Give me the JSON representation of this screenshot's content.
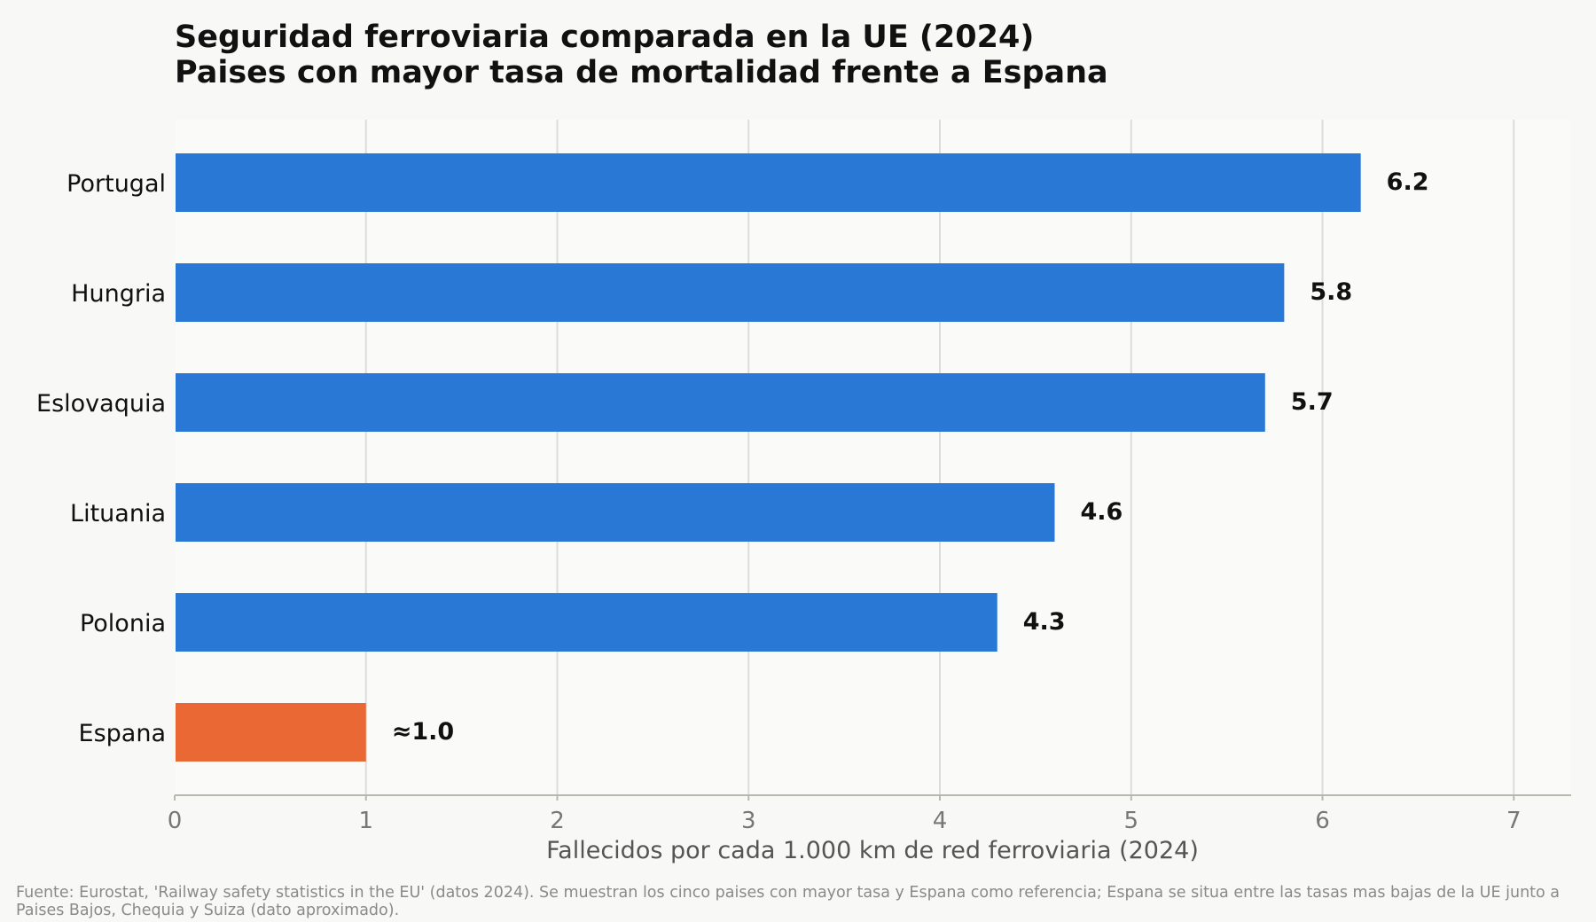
{
  "chart_data": {
    "type": "bar",
    "orientation": "horizontal",
    "title": "Seguridad ferroviaria comparada en la UE (2024)",
    "subtitle": "Paises con mayor tasa de mortalidad frente a Espana",
    "categories": [
      "Portugal",
      "Hungria",
      "Eslovaquia",
      "Lituania",
      "Polonia",
      "Espana"
    ],
    "values": [
      6.2,
      5.8,
      5.7,
      4.6,
      4.3,
      1.0
    ],
    "value_labels": [
      "6.2",
      "5.8",
      "5.7",
      "4.6",
      "4.3",
      "≈1.0"
    ],
    "bar_colors": [
      "#2a78d6",
      "#2a78d6",
      "#2a78d6",
      "#2a78d6",
      "#2a78d6",
      "#e96834"
    ],
    "xlabel": "Fallecidos por cada 1.000 km de red ferroviaria (2024)",
    "ylabel": "",
    "xlim": [
      0,
      7.3
    ],
    "xticks": [
      0,
      1,
      2,
      3,
      4,
      5,
      6,
      7
    ],
    "grid": "vertical",
    "legend": "none"
  },
  "footnote": "Fuente: Eurostat, 'Railway safety statistics in the EU' (datos 2024). Se muestran los cinco paises con mayor tasa y Espana como referencia; Espana se situa entre las tasas mas bajas de la UE junto a Paises Bajos, Chequia y Suiza (dato aproximado).",
  "colors": {
    "background": "#f8f8f7",
    "plot_background": "#fafaf9",
    "grid": "#dcdcda",
    "axis": "#b8b8b0"
  }
}
